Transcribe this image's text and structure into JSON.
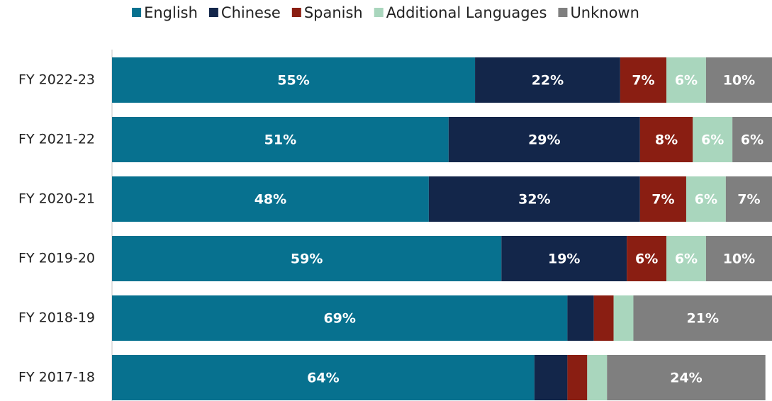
{
  "chart_data": {
    "type": "stacked-bar-horizontal",
    "categories": [
      "FY 2022-23",
      "FY 2021-22",
      "FY 2020-21",
      "FY 2019-20",
      "FY 2018-19",
      "FY 2017-18"
    ],
    "series": [
      {
        "name": "English",
        "color": "#07718f",
        "label_color": "#ffffff",
        "values": [
          55,
          51,
          48,
          59,
          69,
          64
        ],
        "value_labels": [
          "55%",
          "51%",
          "48%",
          "59%",
          "69%",
          "64%"
        ]
      },
      {
        "name": "Chinese",
        "color": "#13264a",
        "label_color": "#ffffff",
        "values": [
          22,
          29,
          32,
          19,
          4,
          5
        ],
        "value_labels": [
          "22%",
          "29%",
          "32%",
          "19%",
          null,
          null
        ]
      },
      {
        "name": "Spanish",
        "color": "#8a1e12",
        "label_color": "#ffffff",
        "values": [
          7,
          8,
          7,
          6,
          3,
          3
        ],
        "value_labels": [
          "7%",
          "8%",
          "7%",
          "6%",
          null,
          null
        ]
      },
      {
        "name": "Additional Languages",
        "color": "#a9d6bd",
        "label_color": "#ffffff",
        "values": [
          6,
          6,
          6,
          6,
          3,
          3
        ],
        "value_labels": [
          "6%",
          "6%",
          "6%",
          "6%",
          null,
          null
        ]
      },
      {
        "name": "Unknown",
        "color": "#7f7f7f",
        "label_color": "#ffffff",
        "values": [
          10,
          6,
          7,
          10,
          21,
          24
        ],
        "value_labels": [
          "10%",
          "6%",
          "7%",
          "10%",
          "21%",
          "24%"
        ]
      }
    ],
    "xlim": [
      0,
      100
    ],
    "legend": "top"
  }
}
